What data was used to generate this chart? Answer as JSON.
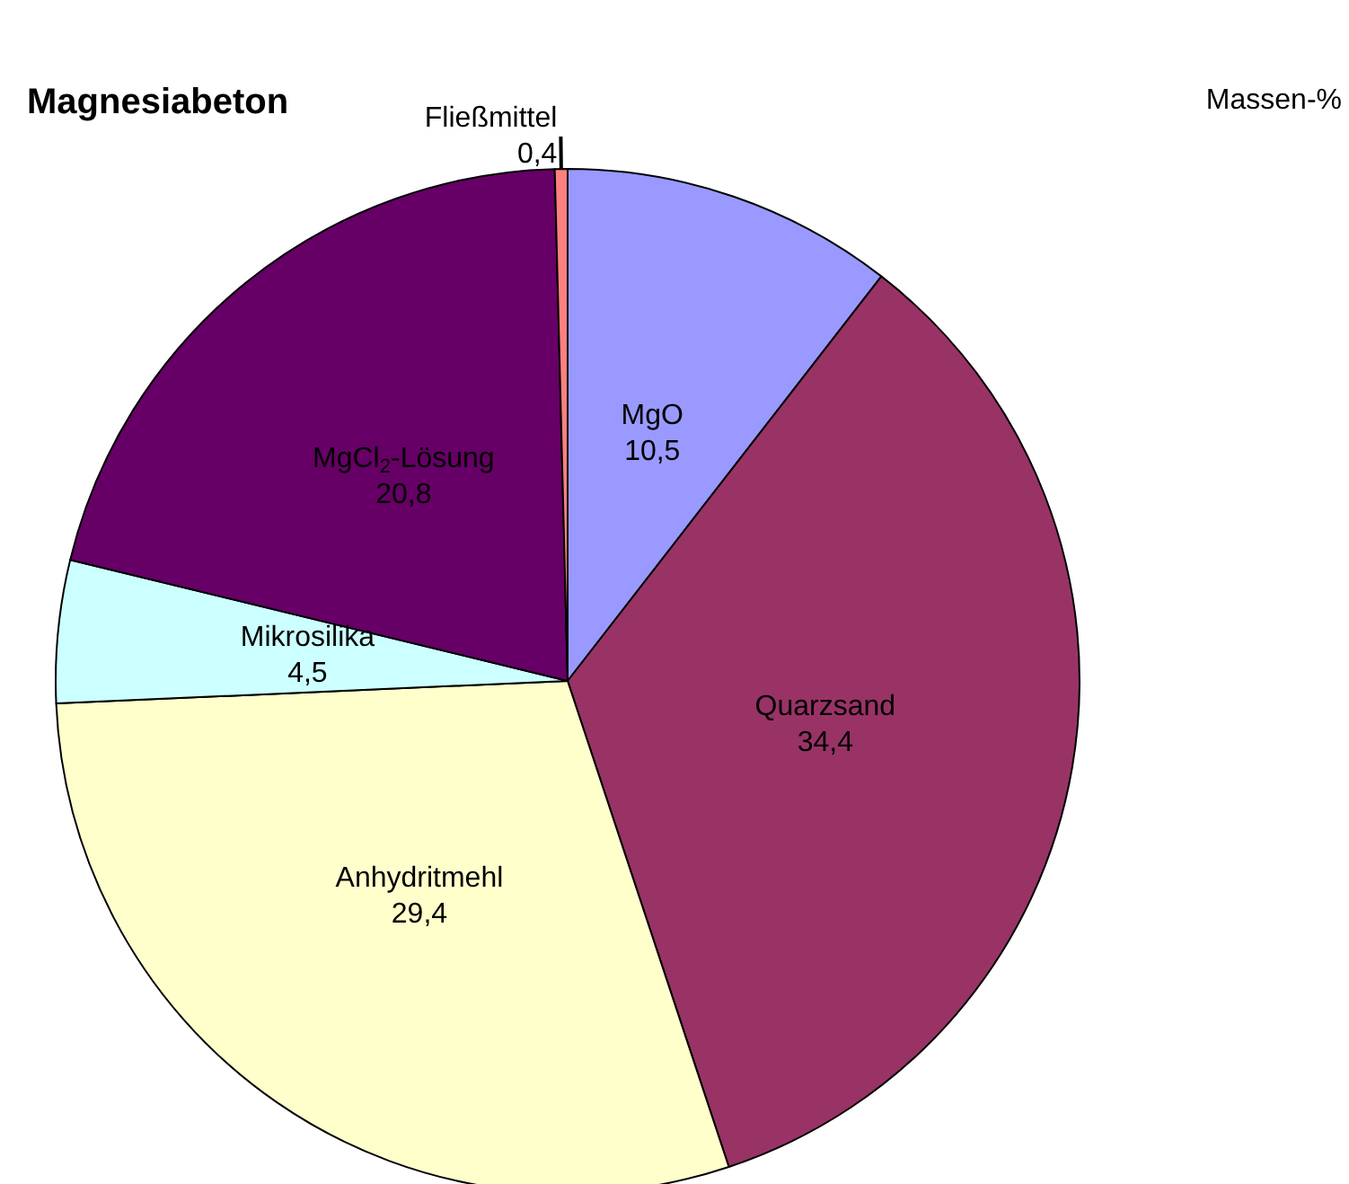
{
  "chart_data": {
    "type": "pie",
    "title": "Magnesiabeton",
    "annotations": [
      "Massen-%"
    ],
    "categories": [
      "MgO",
      "Quarzsand",
      "Anhydritmehl",
      "Mikrosilika",
      "MgCl$_{2}$-Lösung",
      "Fließmittel"
    ],
    "values": [
      10.5,
      34.4,
      29.4,
      4.5,
      20.8,
      0.4
    ],
    "value_labels": [
      "10,5",
      "34,4",
      "29,4",
      "4,5",
      "20,8",
      "0,4"
    ],
    "colors": [
      "#9999ff",
      "#993366",
      "#ffffcc",
      "#ccffff",
      "#660066",
      "#ff8080"
    ]
  }
}
